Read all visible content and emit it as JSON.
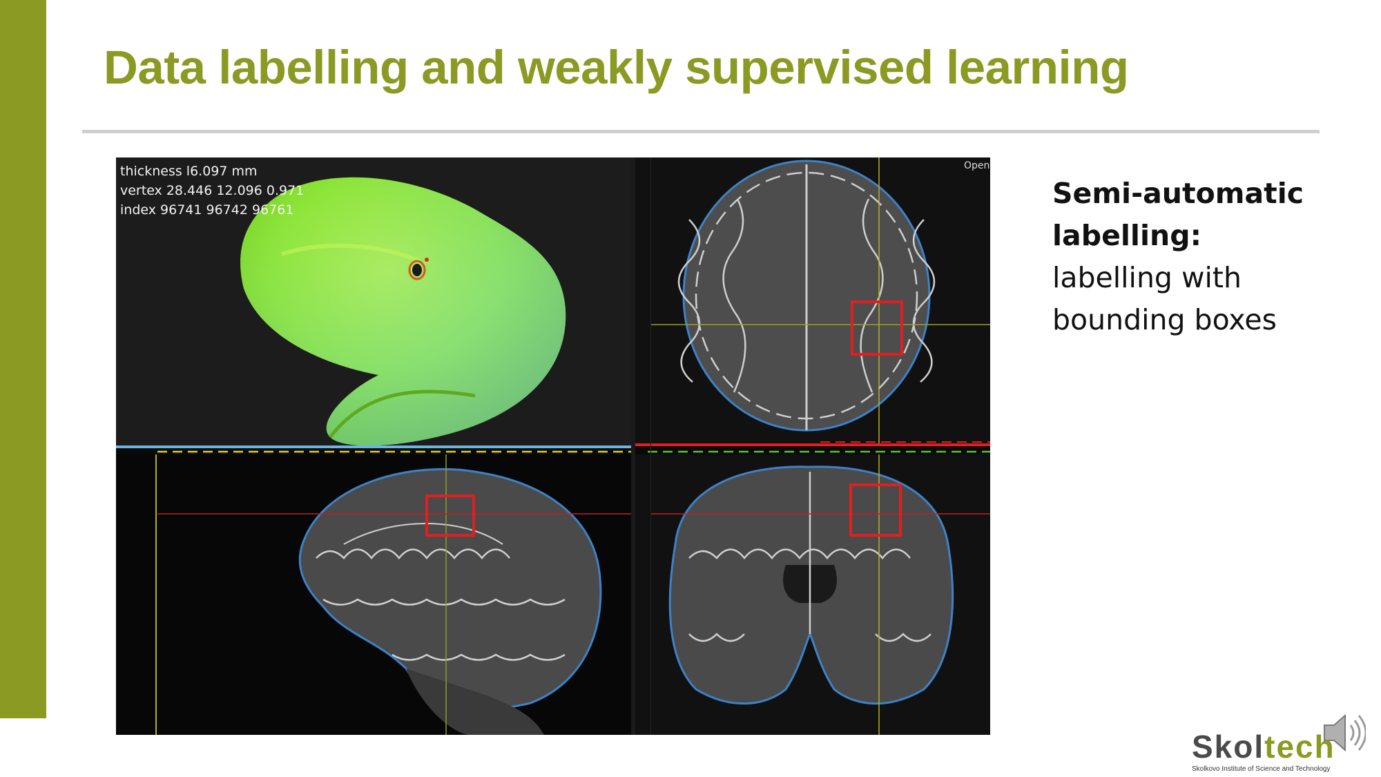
{
  "slide": {
    "title": "Data labelling and weakly supervised learning",
    "accent_color": "#8b9a23",
    "rule_color": "#cfcfcf"
  },
  "viewer": {
    "readout": {
      "thickness": "thickness l6.097 mm",
      "vertex": "vertex 28.446 12.096 0.971",
      "index": "index 96741 96742 96761"
    },
    "open_label": "Open",
    "panels": [
      "3d-surface-view",
      "axial-view",
      "sagittal-view",
      "coronal-view"
    ],
    "bounding_box_color": "#e02020"
  },
  "description": {
    "heading": "Semi-automatic labelling:",
    "body": "labelling with bounding boxes"
  },
  "logo": {
    "name_part1": "Skol",
    "name_part2": "tech",
    "subtitle": "Skolkovo Institute of Science and Technology"
  },
  "icons": {
    "audio": "speaker-icon"
  }
}
